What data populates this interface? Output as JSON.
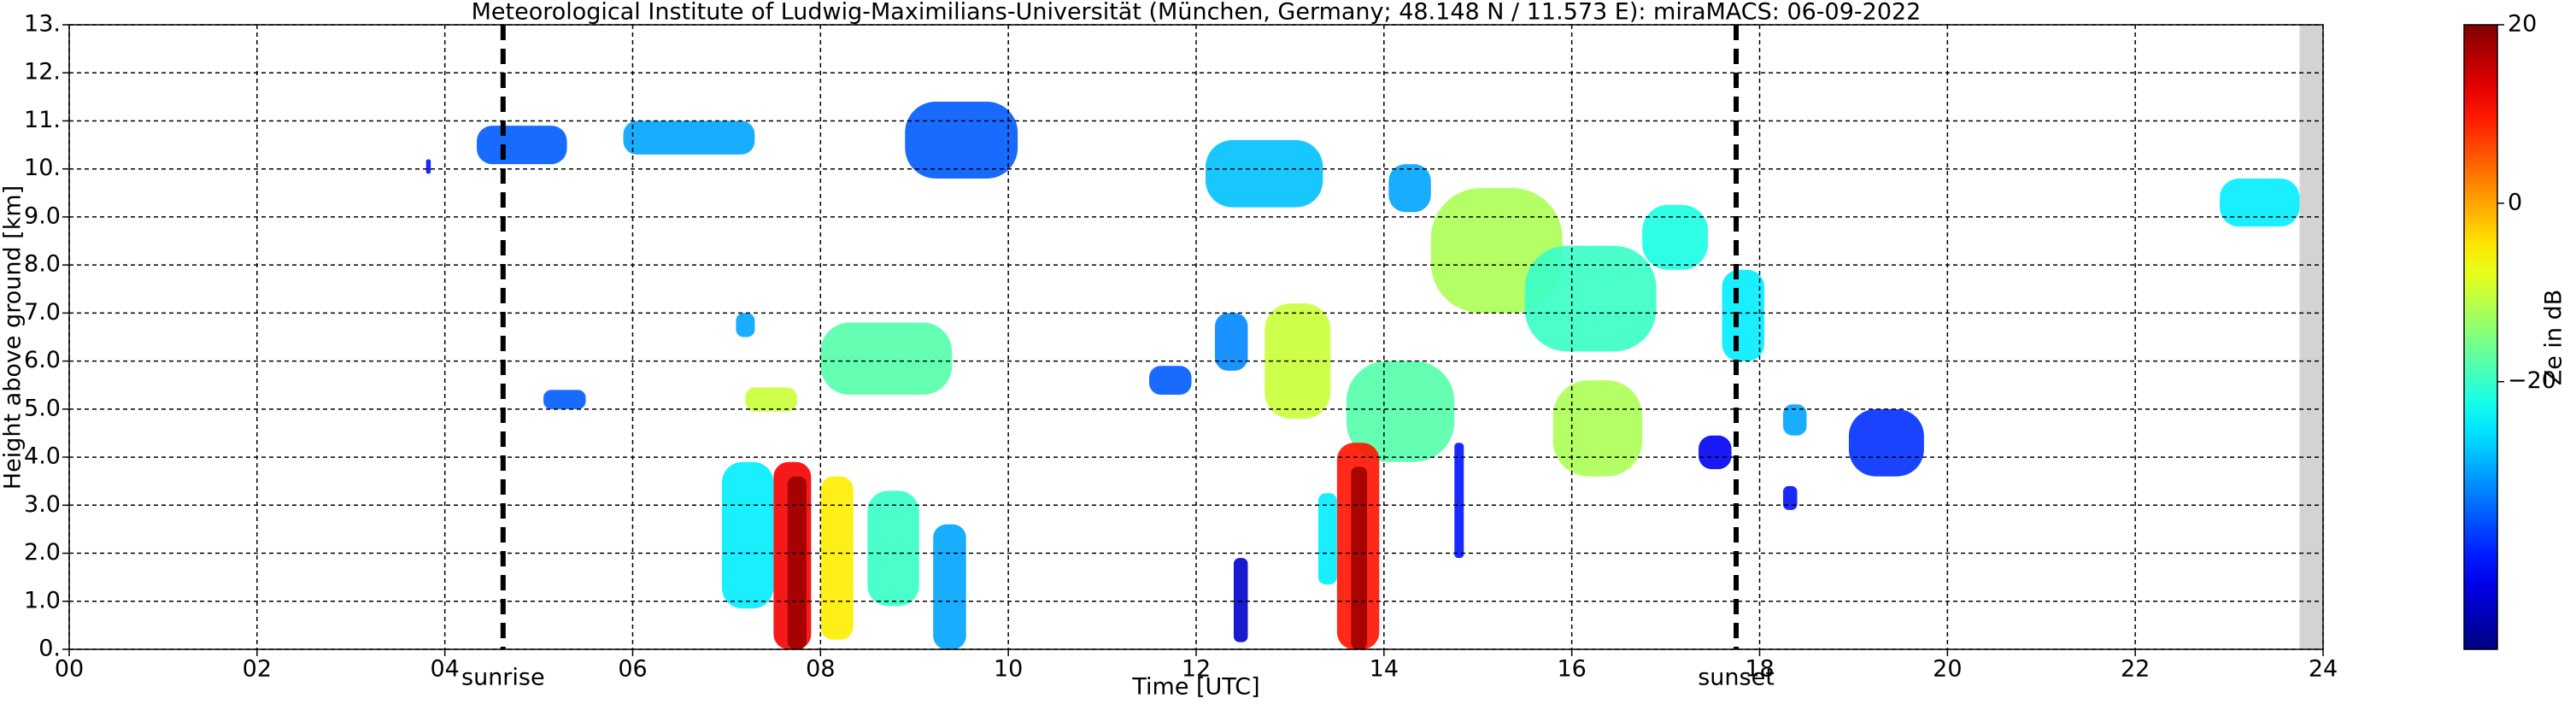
{
  "chart_data": {
    "type": "heatmap",
    "title": "Meteorological Institute of Ludwig-Maximilians-Universität (München, Germany; 48.148 N / 11.573 E):    miraMACS: 06-09-2022",
    "xlabel": "Time [UTC]",
    "ylabel": "Height above ground [km]",
    "xlim": [
      0,
      24
    ],
    "ylim": [
      0,
      13
    ],
    "xticks": [
      {
        "value": 0,
        "label": "00"
      },
      {
        "value": 2,
        "label": "02"
      },
      {
        "value": 4,
        "label": "04"
      },
      {
        "value": 6,
        "label": "06"
      },
      {
        "value": 8,
        "label": "08"
      },
      10,
      12,
      14,
      16,
      18,
      20,
      22,
      24
    ],
    "yticks": [
      {
        "value": 0,
        "label": "0."
      },
      {
        "value": 1,
        "label": "1.0"
      },
      {
        "value": 2,
        "label": "2.0"
      },
      {
        "value": 3,
        "label": "3.0"
      },
      {
        "value": 4,
        "label": "4.0"
      },
      {
        "value": 5,
        "label": "5.0"
      },
      {
        "value": 6,
        "label": "6.0"
      },
      {
        "value": 7,
        "label": "7.0"
      },
      {
        "value": 8,
        "label": "8.0"
      },
      {
        "value": 9,
        "label": "9.0"
      },
      {
        "value": 10,
        "label": "10."
      },
      {
        "value": 11,
        "label": "11."
      },
      {
        "value": 12,
        "label": "12."
      },
      {
        "value": 13,
        "label": "13."
      }
    ],
    "grid": true,
    "no_data": {
      "start": 23.75,
      "color": "#d3d3d3"
    },
    "colorbar": {
      "label": "Ze in dB",
      "clim": [
        -50,
        20
      ],
      "colormap": "jet",
      "ticks": [
        {
          "value": -20,
          "label": "−20"
        },
        0,
        20
      ]
    },
    "annotations": [
      {
        "text": "sunrise",
        "x": 4.62
      },
      {
        "text": "sunset",
        "x": 17.75
      }
    ],
    "echoes": [
      {
        "t": [
          3.8,
          3.85
        ],
        "h": [
          9.9,
          10.2
        ],
        "ze": -40
      },
      {
        "t": [
          4.34,
          5.3
        ],
        "h": [
          10.1,
          10.9
        ],
        "ze": -35
      },
      {
        "t": [
          5.9,
          7.3
        ],
        "h": [
          10.3,
          11.0
        ],
        "ze": -30
      },
      {
        "t": [
          8.9,
          10.1
        ],
        "h": [
          9.8,
          11.4
        ],
        "ze": -35
      },
      {
        "t": [
          12.1,
          13.35
        ],
        "h": [
          9.2,
          10.6
        ],
        "ze": -28
      },
      {
        "t": [
          14.05,
          14.5
        ],
        "h": [
          9.1,
          10.1
        ],
        "ze": -30
      },
      {
        "t": [
          14.5,
          15.9
        ],
        "h": [
          7.0,
          9.6
        ],
        "ze": -12
      },
      {
        "t": [
          15.5,
          16.9
        ],
        "h": [
          6.2,
          8.4
        ],
        "ze": -20
      },
      {
        "t": [
          15.8,
          16.75
        ],
        "h": [
          3.6,
          5.6
        ],
        "ze": -12
      },
      {
        "t": [
          12.73,
          13.43
        ],
        "h": [
          4.8,
          7.2
        ],
        "ze": -10
      },
      {
        "t": [
          13.6,
          14.75
        ],
        "h": [
          3.9,
          6.0
        ],
        "ze": -18
      },
      {
        "t": [
          8.0,
          9.4
        ],
        "h": [
          5.3,
          6.8
        ],
        "ze": -18
      },
      {
        "t": [
          7.2,
          7.75
        ],
        "h": [
          4.95,
          5.45
        ],
        "ze": -10
      },
      {
        "t": [
          7.1,
          7.3
        ],
        "h": [
          6.5,
          7.0
        ],
        "ze": -30
      },
      {
        "t": [
          5.05,
          5.5
        ],
        "h": [
          5.0,
          5.4
        ],
        "ze": -35
      },
      {
        "t": [
          11.5,
          11.95
        ],
        "h": [
          5.3,
          5.9
        ],
        "ze": -35
      },
      {
        "t": [
          12.2,
          12.55
        ],
        "h": [
          5.8,
          7.0
        ],
        "ze": -32
      },
      {
        "t": [
          16.75,
          17.45
        ],
        "h": [
          7.9,
          9.25
        ],
        "ze": -22
      },
      {
        "t": [
          17.6,
          18.05
        ],
        "h": [
          6.0,
          7.9
        ],
        "ze": -25
      },
      {
        "t": [
          17.35,
          17.7
        ],
        "h": [
          3.75,
          4.45
        ],
        "ze": -42
      },
      {
        "t": [
          18.25,
          18.5
        ],
        "h": [
          4.45,
          5.1
        ],
        "ze": -30
      },
      {
        "t": [
          18.95,
          19.75
        ],
        "h": [
          3.6,
          5.0
        ],
        "ze": -38
      },
      {
        "t": [
          22.9,
          23.75
        ],
        "h": [
          8.8,
          9.8
        ],
        "ze": -25
      },
      {
        "t": [
          18.25,
          18.4
        ],
        "h": [
          2.9,
          3.4
        ],
        "ze": -40
      },
      {
        "t": [
          6.95,
          7.5
        ],
        "h": [
          0.85,
          3.9
        ],
        "ze": -25
      },
      {
        "t": [
          7.5,
          7.9
        ],
        "h": [
          0.0,
          3.9
        ],
        "ze": 12
      },
      {
        "t": [
          7.65,
          7.85
        ],
        "h": [
          0.0,
          3.6
        ],
        "ze": 18
      },
      {
        "t": [
          8.0,
          8.35
        ],
        "h": [
          0.2,
          3.6
        ],
        "ze": -5
      },
      {
        "t": [
          8.5,
          9.05
        ],
        "h": [
          0.9,
          3.3
        ],
        "ze": -20
      },
      {
        "t": [
          9.2,
          9.55
        ],
        "h": [
          0.0,
          2.6
        ],
        "ze": -30
      },
      {
        "t": [
          13.5,
          13.95
        ],
        "h": [
          0.0,
          4.3
        ],
        "ze": 10
      },
      {
        "t": [
          13.65,
          13.82
        ],
        "h": [
          0.0,
          3.8
        ],
        "ze": 18
      },
      {
        "t": [
          13.3,
          13.5
        ],
        "h": [
          1.35,
          3.25
        ],
        "ze": -25
      },
      {
        "t": [
          14.75,
          14.85
        ],
        "h": [
          1.9,
          4.3
        ],
        "ze": -40
      },
      {
        "t": [
          12.4,
          12.55
        ],
        "h": [
          0.15,
          1.9
        ],
        "ze": -45
      }
    ]
  }
}
